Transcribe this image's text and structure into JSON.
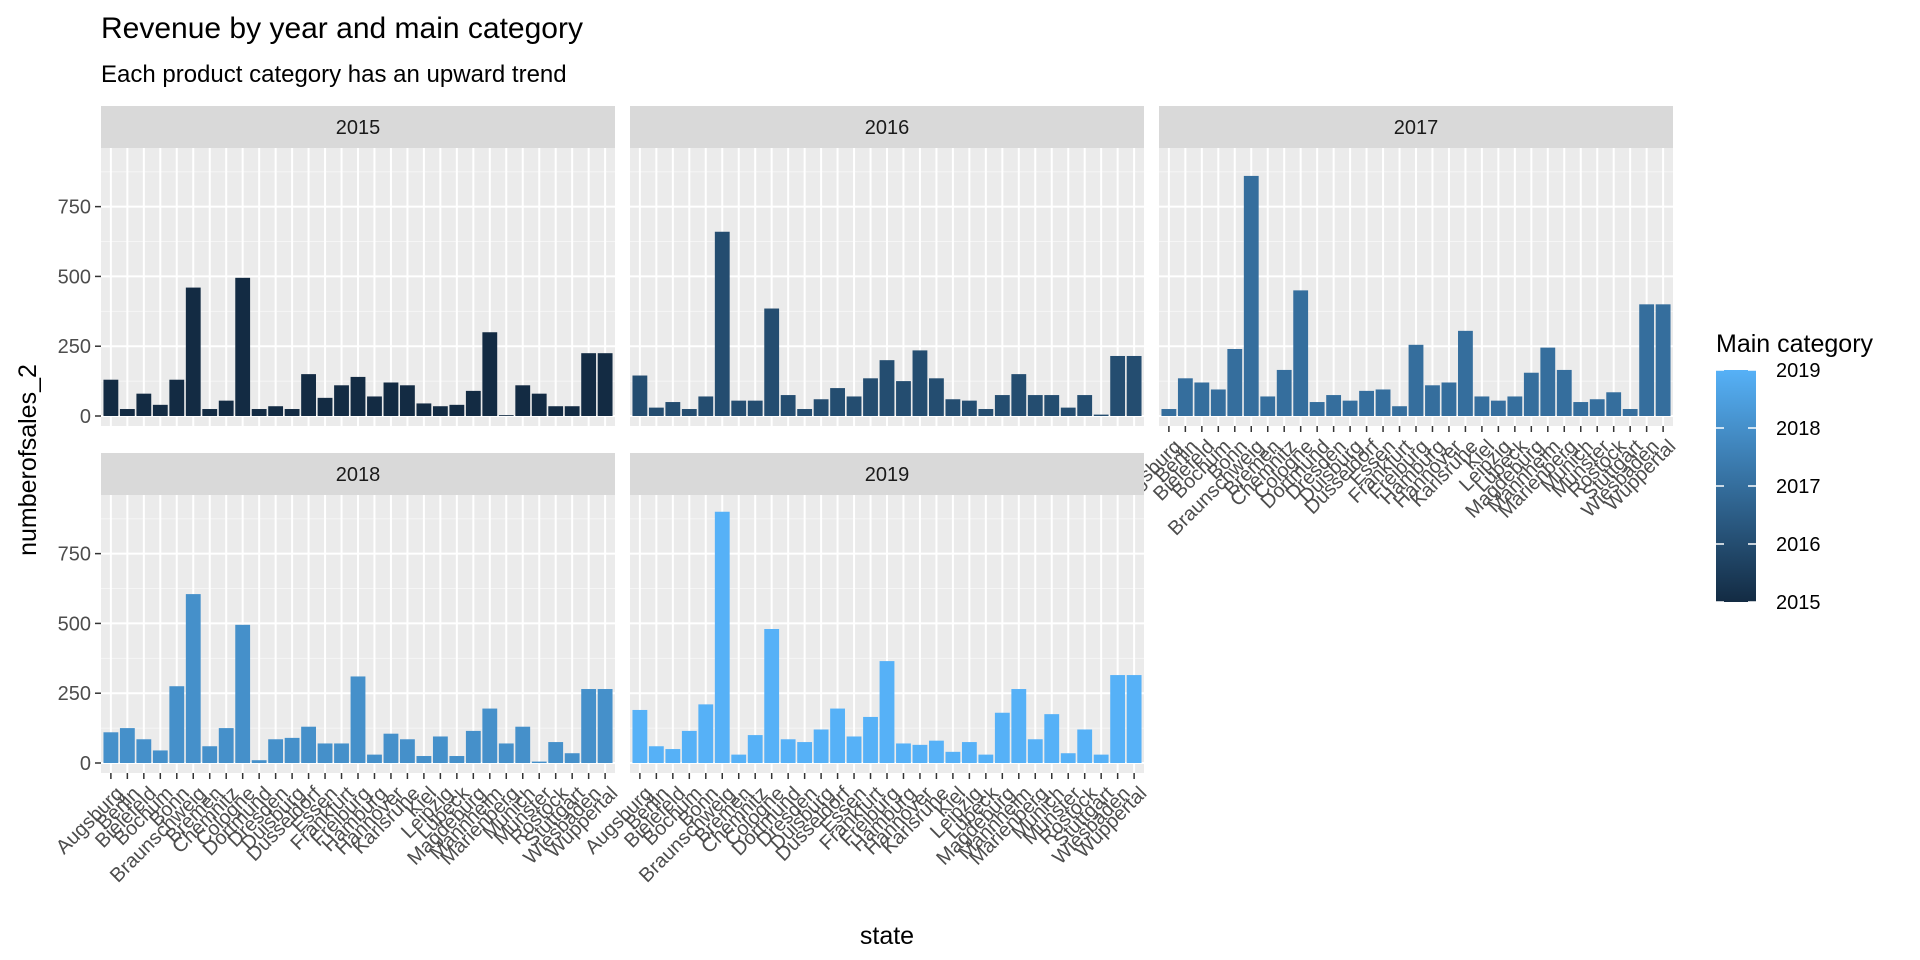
{
  "chart_data": {
    "type": "bar",
    "title": "Revenue by year and main category",
    "subtitle": "Each product category has an upward trend",
    "xlabel": "state",
    "ylabel": "numberofsales_2",
    "ylim": [
      0,
      960
    ],
    "yticks": [
      0,
      250,
      500,
      750
    ],
    "categories": [
      "Augsburg",
      "Berlin",
      "Bielefeld",
      "Bochum",
      "Bonn",
      "Braunschweig",
      "Bremen",
      "Chemnitz",
      "Cologne",
      "Dortmund",
      "Dresden",
      "Duisburg",
      "Dusseldorf",
      "Essen",
      "Frankfurt",
      "Freiburg",
      "Hamburg",
      "Hannover",
      "Karlsruhe",
      "Kiel",
      "Leipzig",
      "Lubeck",
      "Magdeburg",
      "Mannheim",
      "Marienberg",
      "Munich",
      "Munster",
      "Rostock",
      "Stuttgart",
      "Wiesbaden",
      "Wuppertal"
    ],
    "facets": [
      {
        "label": "2015",
        "year": 2015,
        "values": [
          130,
          25,
          80,
          40,
          130,
          460,
          25,
          55,
          495,
          25,
          35,
          25,
          150,
          65,
          110,
          140,
          70,
          120,
          110,
          45,
          35,
          40,
          90,
          300,
          3,
          110,
          80,
          35,
          35,
          225,
          225
        ]
      },
      {
        "label": "2016",
        "year": 2016,
        "values": [
          145,
          30,
          50,
          25,
          70,
          660,
          55,
          55,
          385,
          75,
          25,
          60,
          100,
          70,
          135,
          200,
          125,
          235,
          135,
          60,
          55,
          25,
          75,
          150,
          75,
          75,
          30,
          75,
          5,
          215,
          215
        ]
      },
      {
        "label": "2017",
        "year": 2017,
        "values": [
          25,
          135,
          120,
          95,
          240,
          860,
          70,
          165,
          450,
          50,
          75,
          55,
          90,
          95,
          35,
          255,
          110,
          120,
          305,
          70,
          55,
          70,
          155,
          245,
          165,
          50,
          60,
          85,
          25,
          400,
          400
        ]
      },
      {
        "label": "2018",
        "year": 2018,
        "values": [
          110,
          125,
          85,
          45,
          275,
          605,
          60,
          125,
          495,
          10,
          85,
          90,
          130,
          70,
          70,
          310,
          30,
          105,
          85,
          25,
          95,
          25,
          115,
          195,
          70,
          130,
          5,
          75,
          35,
          265,
          265
        ]
      },
      {
        "label": "2019",
        "year": 2019,
        "values": [
          190,
          60,
          50,
          115,
          210,
          900,
          30,
          100,
          480,
          85,
          75,
          120,
          195,
          95,
          165,
          365,
          70,
          65,
          80,
          40,
          75,
          30,
          180,
          265,
          85,
          175,
          35,
          120,
          30,
          315,
          315
        ]
      }
    ],
    "legend": {
      "title": "Main category",
      "labels": [
        "2019",
        "2018",
        "2017",
        "2016",
        "2015"
      ],
      "low_color": "#132B43",
      "high_color": "#56B1F7"
    },
    "panel_background": "#EBEBEB",
    "strip_background": "#D9D9D9",
    "grid": true,
    "legend_position": "right"
  }
}
